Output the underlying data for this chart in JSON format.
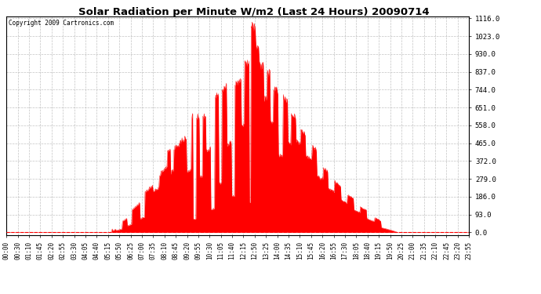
{
  "title": "Solar Radiation per Minute W/m2 (Last 24 Hours) 20090714",
  "copyright": "Copyright 2009 Cartronics.com",
  "background_color": "#ffffff",
  "fill_color": "#ff0000",
  "grid_color": "#aaaaaa",
  "y_ticks": [
    0.0,
    93.0,
    186.0,
    279.0,
    372.0,
    465.0,
    558.0,
    651.0,
    744.0,
    837.0,
    930.0,
    1023.0,
    1116.0
  ],
  "y_max": 1116.0,
  "x_tick_labels": [
    "00:00",
    "00:30",
    "01:10",
    "01:45",
    "02:20",
    "02:55",
    "03:30",
    "04:05",
    "04:40",
    "05:15",
    "05:50",
    "06:25",
    "07:00",
    "07:35",
    "08:10",
    "08:45",
    "09:20",
    "09:55",
    "10:30",
    "11:05",
    "11:40",
    "12:15",
    "12:50",
    "13:25",
    "14:00",
    "14:35",
    "15:10",
    "15:45",
    "16:20",
    "16:55",
    "17:30",
    "18:05",
    "18:40",
    "19:15",
    "19:50",
    "20:25",
    "21:00",
    "21:35",
    "22:10",
    "22:45",
    "23:20",
    "23:55"
  ],
  "num_points": 1440,
  "sunrise": 325,
  "sunset": 1215,
  "peak_time": 765,
  "peak_value": 1116.0
}
